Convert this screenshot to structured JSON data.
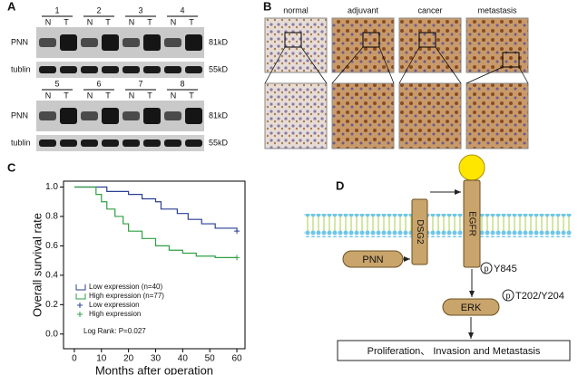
{
  "panels": {
    "a": "A",
    "b": "B",
    "c": "C",
    "d": "D"
  },
  "blot": {
    "groups": [
      {
        "lanes": [
          "1",
          "2",
          "3",
          "4"
        ]
      },
      {
        "lanes": [
          "5",
          "6",
          "7",
          "8"
        ]
      }
    ],
    "sample_labels": [
      "N",
      "T"
    ],
    "proteins": [
      "PNN",
      "tublin"
    ],
    "sizes": [
      "81kD",
      "55kD"
    ]
  },
  "ihc": {
    "labels": [
      "normal",
      "adjuvant",
      "cancer",
      "metastasis"
    ]
  },
  "chart_data": {
    "type": "line",
    "xlabel": "Months after operation",
    "ylabel": "Overall survival rate",
    "x": [
      0,
      5,
      8,
      10,
      12,
      15,
      18,
      20,
      25,
      30,
      32,
      35,
      38,
      40,
      42,
      45,
      47,
      52,
      60
    ],
    "series": [
      {
        "name": "Low expression (n=40)",
        "color": "#2b3f94",
        "values": [
          1,
          1,
          1,
          1,
          0.97,
          0.97,
          0.97,
          0.95,
          0.92,
          0.9,
          0.85,
          0.85,
          0.82,
          0.82,
          0.78,
          0.78,
          0.75,
          0.72,
          0.7
        ]
      },
      {
        "name": "High expression (n=77)",
        "color": "#2ea043",
        "values": [
          1,
          1,
          0.95,
          0.9,
          0.85,
          0.8,
          0.75,
          0.7,
          0.65,
          0.6,
          0.6,
          0.57,
          0.57,
          0.55,
          0.55,
          0.53,
          0.53,
          0.52,
          0.52
        ]
      }
    ],
    "censor_legend": [
      "Low expression",
      "High expression"
    ],
    "annotation": "Log Rank: P=0.027",
    "xlim": [
      -4,
      63
    ],
    "xticks": [
      0,
      10,
      20,
      30,
      40,
      50,
      60
    ],
    "ylim": [
      -0.1,
      1.04
    ],
    "yticks": [
      {
        "value": 0,
        "label": "0.0"
      },
      {
        "value": 0.2,
        "label": "0.2"
      },
      {
        "value": 0.4,
        "label": "0.4"
      },
      {
        "value": 0.6,
        "label": "0.6"
      },
      {
        "value": 0.8,
        "label": "0.8"
      },
      {
        "value": 1,
        "label": "1.0"
      }
    ]
  },
  "diagram": {
    "dsg2": "DSG2",
    "egfr": "EGFR",
    "pnn": "PNN",
    "erk": "ERK",
    "site1": "Y845",
    "site2": "T202/Y204",
    "outcome": "Proliferation、 Invasion and Metastasis"
  }
}
